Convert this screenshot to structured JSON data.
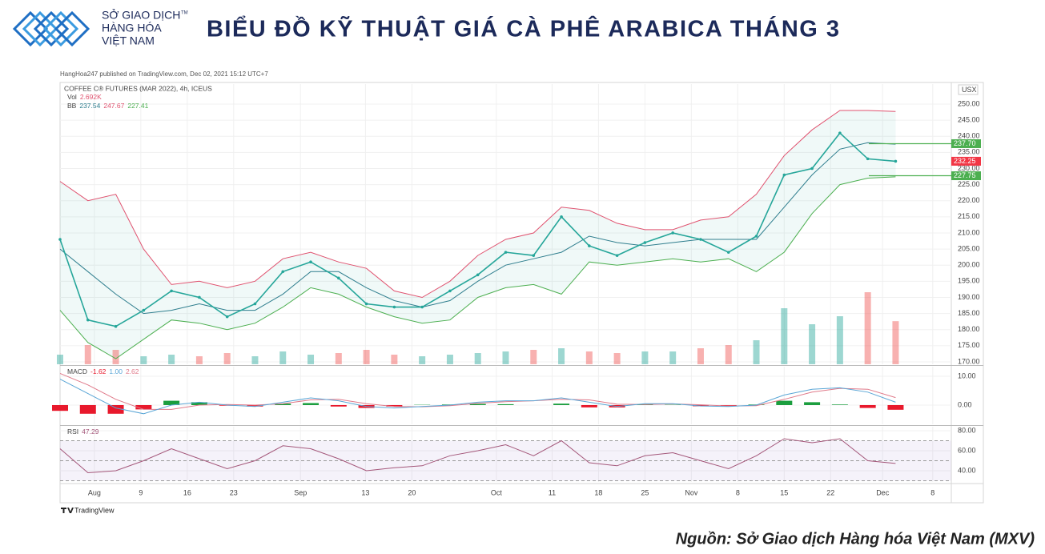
{
  "header": {
    "logo_lines": [
      "SỞ GIAO DỊCH",
      "HÀNG HÓA",
      "VIỆT NAM"
    ],
    "trademark": "TM",
    "title": "BIỂU ĐỒ KỸ THUẬT GIÁ CÀ PHÊ ARABICA THÁNG 3"
  },
  "published": "HangHoa247 published on TradingView.com, Dec 02, 2021 15:12 UTC+7",
  "chart_data": [
    {
      "type": "price",
      "symbol": "COFFEE C® FUTURES (MAR 2022), 4h, ICEUS",
      "volume_legend": [
        "Vol",
        "2.692K"
      ],
      "bb_legend": [
        "BB",
        "237.54",
        "247.67",
        "227.41"
      ],
      "unit": "USX",
      "x": [
        0,
        3,
        6,
        9,
        12,
        15,
        18,
        21,
        24,
        27,
        30,
        33,
        36,
        39,
        42,
        45,
        48,
        51,
        54,
        57,
        60,
        63,
        66,
        69,
        72,
        75,
        78,
        81,
        84,
        87,
        90
      ],
      "xlim": [
        0,
        96
      ],
      "ylim": [
        169.25,
        256.2
      ],
      "yticks": [
        {
          "value": 170,
          "label": "170.00"
        },
        {
          "value": 175,
          "label": "175.00"
        },
        {
          "value": 180,
          "label": "180.00"
        },
        {
          "value": 185,
          "label": "185.00"
        },
        {
          "value": 190,
          "label": "190.00"
        },
        {
          "value": 195,
          "label": "195.00"
        },
        {
          "value": 200,
          "label": "200.00"
        },
        {
          "value": 205,
          "label": "205.00"
        },
        {
          "value": 210,
          "label": "210.00"
        },
        {
          "value": 215,
          "label": "215.00"
        },
        {
          "value": 220,
          "label": "220.00"
        },
        {
          "value": 225,
          "label": "225.00"
        },
        {
          "value": 230,
          "label": "230.00"
        },
        {
          "value": 235,
          "label": "235.00"
        },
        {
          "value": 240,
          "label": "240.00"
        },
        {
          "value": 245,
          "label": "245.00"
        },
        {
          "value": 250,
          "label": "250.00"
        }
      ],
      "series": [
        {
          "color": "#26a69a",
          "values": [
            208,
            183,
            181,
            186,
            192,
            190,
            184,
            188,
            198,
            201,
            196,
            188,
            187,
            187,
            192,
            197,
            204,
            203,
            215,
            206,
            203,
            207,
            210,
            208,
            204,
            209,
            228,
            230,
            241,
            233,
            232.25
          ]
        },
        {
          "color": "#2f7e8e",
          "values": [
            205,
            198,
            191,
            185,
            186,
            188,
            186,
            186,
            191,
            198,
            198,
            193,
            189,
            187,
            189,
            195,
            200,
            202,
            204,
            209,
            207,
            206,
            207,
            208,
            208,
            208,
            218,
            228,
            236,
            238,
            237.54
          ]
        },
        {
          "color": "#e0526f",
          "values": [
            226,
            220,
            222,
            205,
            194,
            195,
            193,
            195,
            202,
            204,
            201,
            199,
            192,
            190,
            195,
            203,
            208,
            210,
            218,
            217,
            213,
            211,
            211,
            214,
            215,
            222,
            234,
            242,
            248,
            248,
            247.67
          ]
        },
        {
          "color": "#4caf50",
          "values": [
            186,
            176,
            171,
            177,
            183,
            182,
            180,
            182,
            187,
            193,
            191,
            187,
            184,
            182,
            183,
            190,
            193,
            194,
            191,
            201,
            200,
            201,
            202,
            201,
            202,
            198,
            204,
            216,
            225,
            227,
            227.41
          ]
        }
      ],
      "band_fill": "rgba(38,166,154,0.07)",
      "volume": {
        "values": [
          0.6,
          1.2,
          0.9,
          0.5,
          0.6,
          0.5,
          0.7,
          0.5,
          0.8,
          0.6,
          0.7,
          0.9,
          0.6,
          0.5,
          0.6,
          0.7,
          0.8,
          0.9,
          1.0,
          0.8,
          0.7,
          0.8,
          0.8,
          1.0,
          1.2,
          1.5,
          3.5,
          2.5,
          3.0,
          4.5,
          2.692
        ],
        "lim": [
          0,
          5
        ],
        "up_color": "rgba(38,166,154,0.45)",
        "down_color": "rgba(239,83,80,0.45)"
      },
      "levels": [
        {
          "value": 237.7,
          "label": "237.70",
          "color": "#4caf50"
        },
        {
          "value": 232.25,
          "label": "232.25",
          "color": "#f23645"
        },
        {
          "value": 227.75,
          "label": "227.75",
          "color": "#4caf50"
        }
      ],
      "grid": true
    },
    {
      "type": "macd",
      "legend": [
        "MACD",
        "-1.62",
        "1.00",
        "2.62"
      ],
      "x": [
        0,
        3,
        6,
        9,
        12,
        15,
        18,
        21,
        24,
        27,
        30,
        33,
        36,
        39,
        42,
        45,
        48,
        51,
        54,
        57,
        60,
        63,
        66,
        69,
        72,
        75,
        78,
        81,
        84,
        87,
        90
      ],
      "xlim": [
        0,
        96
      ],
      "ylim": [
        -6.67,
        13.33
      ],
      "yticks": [
        {
          "value": 0,
          "label": "0.00"
        },
        {
          "value": 10,
          "label": "10.00"
        }
      ],
      "series": [
        {
          "color": "#5aa6d6",
          "values": [
            9,
            4,
            -1,
            -3,
            0,
            1,
            0,
            -0.5,
            1,
            2.5,
            1.5,
            -0.5,
            -1,
            -0.5,
            0,
            1,
            1.5,
            1.5,
            2.5,
            1,
            -0.5,
            0.5,
            0.5,
            -0.3,
            -0.5,
            0,
            3.5,
            5.5,
            6,
            4.5,
            1.0
          ]
        },
        {
          "color": "#e07a8a",
          "values": [
            11,
            7,
            2,
            -1.5,
            -1.5,
            0,
            0.2,
            0,
            0.5,
            1.8,
            2,
            0.5,
            -0.5,
            -0.6,
            -0.2,
            0.6,
            1.2,
            1.5,
            2,
            1.8,
            0.3,
            0.2,
            0.4,
            0.1,
            -0.3,
            -0.2,
            2,
            4.5,
            5.8,
            5.5,
            2.62
          ]
        }
      ],
      "histogram": {
        "values": [
          -2,
          -3,
          -3,
          -1.5,
          1.5,
          1,
          -0.2,
          -0.5,
          0.5,
          0.7,
          -0.5,
          -1,
          -0.5,
          0.1,
          0.2,
          0.4,
          0.3,
          0,
          0.5,
          -0.8,
          -0.8,
          0.3,
          0.1,
          -0.4,
          -0.2,
          0.2,
          1.5,
          1,
          0.2,
          -1,
          -1.62
        ],
        "up_color": "#1b9e3e",
        "down_color": "#e8192c"
      },
      "grid": true
    },
    {
      "type": "rsi",
      "legend": [
        "RSI",
        "47.29"
      ],
      "x": [
        0,
        3,
        6,
        9,
        12,
        15,
        18,
        21,
        24,
        27,
        30,
        33,
        36,
        39,
        42,
        45,
        48,
        51,
        54,
        57,
        60,
        63,
        66,
        69,
        72,
        75,
        78,
        81,
        84,
        87,
        90
      ],
      "xlim": [
        0,
        96
      ],
      "ylim": [
        28.8,
        84
      ],
      "yticks": [
        {
          "value": 40,
          "label": "40.00"
        },
        {
          "value": 60,
          "label": "60.00"
        },
        {
          "value": 80,
          "label": "80.00"
        }
      ],
      "xticks": [
        {
          "value": 3.7,
          "label": "Aug"
        },
        {
          "value": 8.7,
          "label": "9"
        },
        {
          "value": 13.7,
          "label": "16"
        },
        {
          "value": 18.7,
          "label": "23"
        },
        {
          "value": 25.9,
          "label": "Sep"
        },
        {
          "value": 32.9,
          "label": "13"
        },
        {
          "value": 37.9,
          "label": "20"
        },
        {
          "value": 47,
          "label": "Oct"
        },
        {
          "value": 53,
          "label": "11"
        },
        {
          "value": 58,
          "label": "18"
        },
        {
          "value": 63,
          "label": "25"
        },
        {
          "value": 68,
          "label": "Nov"
        },
        {
          "value": 73,
          "label": "8"
        },
        {
          "value": 78,
          "label": "15"
        },
        {
          "value": 83,
          "label": "22"
        },
        {
          "value": 88.6,
          "label": "Dec"
        },
        {
          "value": 94,
          "label": "8"
        }
      ],
      "series": [
        {
          "color": "#a4577a",
          "values": [
            62,
            38,
            40,
            50,
            62,
            52,
            42,
            50,
            65,
            62,
            52,
            40,
            43,
            45,
            55,
            60,
            66,
            55,
            70,
            48,
            45,
            55,
            58,
            50,
            42,
            55,
            72,
            68,
            72,
            50,
            47.29
          ]
        }
      ],
      "band": [
        30,
        70
      ],
      "midline": 50,
      "band_color": "rgba(126,87,194,0.08)",
      "grid": true
    }
  ],
  "footer": {
    "brand": "TradingView",
    "source": "Nguồn: Sở Giao dịch Hàng hóa Việt Nam (MXV)"
  }
}
